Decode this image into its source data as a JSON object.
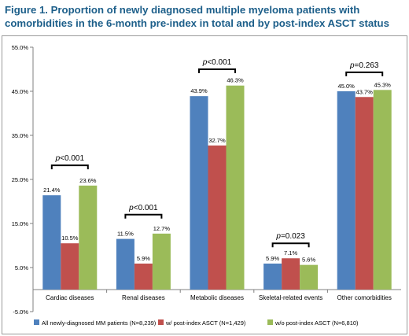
{
  "title": "Figure 1. Proportion of newly diagnosed multiple myeloma patients with comorbidities in the 6-month pre-index in total and by post-index ASCT status",
  "chart_data": {
    "type": "bar",
    "categories": [
      "Cardiac diseases",
      "Renal diseases",
      "Metabolic diseases",
      "Skeletal-related events",
      "Other comorbidities"
    ],
    "series": [
      {
        "name": "All newly-diagnosed MM patients (N=8,239)",
        "color": "#4f81bd",
        "values": [
          21.4,
          11.5,
          43.9,
          5.9,
          45.0
        ],
        "labels": [
          "21.4%",
          "11.5%",
          "43.9%",
          "5.9%",
          "45.0%"
        ]
      },
      {
        "name": "w/ post-index ASCT (N=1,429)",
        "color": "#c0504d",
        "values": [
          10.5,
          5.9,
          32.7,
          7.1,
          43.7
        ],
        "labels": [
          "10.5%",
          "5.9%",
          "32.7%",
          "7.1%",
          "43.7%"
        ]
      },
      {
        "name": "w/o post-index ASCT (N=6,810)",
        "color": "#9bbb59",
        "values": [
          23.6,
          12.7,
          46.3,
          5.6,
          45.3
        ],
        "labels": [
          "23.6%",
          "12.7%",
          "46.3%",
          "5.6%",
          "45.3%"
        ]
      }
    ],
    "yticks": [
      55.0,
      45.0,
      35.0,
      25.0,
      15.0,
      5.0,
      -5.0
    ],
    "ytick_labels": [
      "55.0%",
      "45.0%",
      "35.0%",
      "25.0%",
      "15.0%",
      "5.0%",
      "-5.0%"
    ],
    "ylim": [
      -5,
      55
    ],
    "annotations": [
      {
        "category": "Cardiac diseases",
        "text": "p<0.001",
        "bracket_y": 28.2
      },
      {
        "category": "Renal diseases",
        "text": "p<0.001",
        "bracket_y": 17.0
      },
      {
        "category": "Metabolic diseases",
        "text": "p<0.001",
        "bracket_y": 50.0
      },
      {
        "category": "Skeletal-related events",
        "text": "p=0.023",
        "bracket_y": 10.5
      },
      {
        "category": "Other comorbidities",
        "text": "p=0.263",
        "bracket_y": 49.3
      }
    ],
    "grid": false,
    "legend": "bottom"
  }
}
